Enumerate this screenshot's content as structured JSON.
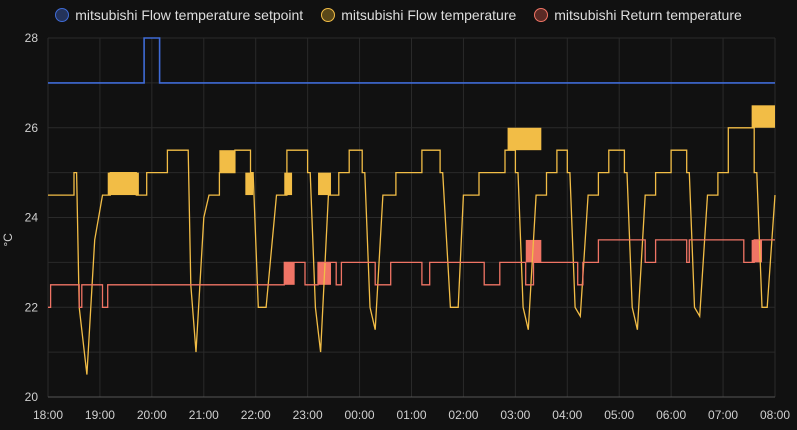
{
  "chart_data": {
    "type": "line",
    "ylabel": "°C",
    "ylim": [
      20,
      28
    ],
    "yticks": [
      20,
      22,
      24,
      26,
      28
    ],
    "xticks": [
      "18:00",
      "19:00",
      "20:00",
      "21:00",
      "22:00",
      "23:00",
      "00:00",
      "01:00",
      "02:00",
      "03:00",
      "04:00",
      "05:00",
      "06:00",
      "07:00",
      "08:00"
    ],
    "grid": true,
    "legend_position": "top",
    "series": [
      {
        "name": "mitsubishi Flow temperature setpoint",
        "color": "#3f6bd6",
        "step": true,
        "points": [
          [
            0,
            27
          ],
          [
            1.85,
            27
          ],
          [
            1.85,
            28
          ],
          [
            2.15,
            28
          ],
          [
            2.15,
            27
          ],
          [
            14,
            27
          ]
        ]
      },
      {
        "name": "mitsubishi Flow temperature",
        "color": "#f2bd46",
        "step": true,
        "points": [
          [
            0,
            24.5
          ],
          [
            0.5,
            24.5
          ],
          [
            0.5,
            25
          ],
          [
            0.55,
            25
          ],
          [
            0.6,
            22
          ],
          [
            0.75,
            20.5
          ],
          [
            0.9,
            23.5
          ],
          [
            1.05,
            24.5
          ],
          [
            1.2,
            24.5
          ],
          [
            1.2,
            25
          ],
          [
            1.7,
            25
          ],
          [
            1.7,
            24.5
          ],
          [
            1.9,
            24.5
          ],
          [
            1.9,
            25
          ],
          [
            2.1,
            25
          ],
          [
            2.1,
            25
          ],
          [
            2.3,
            25
          ],
          [
            2.3,
            25.5
          ],
          [
            2.7,
            25.5
          ],
          [
            2.75,
            22.5
          ],
          [
            2.85,
            21
          ],
          [
            3,
            24
          ],
          [
            3.1,
            24.5
          ],
          [
            3.3,
            24.5
          ],
          [
            3.3,
            25
          ],
          [
            3.6,
            25
          ],
          [
            3.6,
            25.5
          ],
          [
            3.9,
            25.5
          ],
          [
            3.9,
            25
          ],
          [
            3.95,
            25
          ],
          [
            4.05,
            22
          ],
          [
            4.2,
            22
          ],
          [
            4.4,
            24.5
          ],
          [
            4.6,
            24.5
          ],
          [
            4.6,
            25.5
          ],
          [
            5,
            25.5
          ],
          [
            5,
            25
          ],
          [
            5.05,
            25
          ],
          [
            5.15,
            22
          ],
          [
            5.25,
            21
          ],
          [
            5.4,
            24.5
          ],
          [
            5.6,
            24.5
          ],
          [
            5.6,
            25
          ],
          [
            5.8,
            25
          ],
          [
            5.8,
            25.5
          ],
          [
            6.05,
            25.5
          ],
          [
            6.05,
            25
          ],
          [
            6.1,
            25
          ],
          [
            6.2,
            22
          ],
          [
            6.3,
            21.5
          ],
          [
            6.45,
            24.5
          ],
          [
            6.7,
            24.5
          ],
          [
            6.7,
            25
          ],
          [
            7.2,
            25
          ],
          [
            7.2,
            25.5
          ],
          [
            7.55,
            25.5
          ],
          [
            7.55,
            25
          ],
          [
            7.6,
            25
          ],
          [
            7.75,
            22
          ],
          [
            7.9,
            22
          ],
          [
            8.0,
            24.5
          ],
          [
            8.3,
            24.5
          ],
          [
            8.3,
            25
          ],
          [
            8.8,
            25
          ],
          [
            8.8,
            25.5
          ],
          [
            9.0,
            25.5
          ],
          [
            9.0,
            25
          ],
          [
            9.05,
            25
          ],
          [
            9.15,
            22
          ],
          [
            9.25,
            21.5
          ],
          [
            9.4,
            24.5
          ],
          [
            9.6,
            24.5
          ],
          [
            9.6,
            25
          ],
          [
            9.8,
            25
          ],
          [
            9.8,
            25.5
          ],
          [
            10.0,
            25.5
          ],
          [
            10.0,
            25
          ],
          [
            10.05,
            25
          ],
          [
            10.15,
            22
          ],
          [
            10.25,
            21.8
          ],
          [
            10.4,
            24.5
          ],
          [
            10.6,
            24.5
          ],
          [
            10.6,
            25
          ],
          [
            10.8,
            25
          ],
          [
            10.8,
            25.5
          ],
          [
            11.1,
            25.5
          ],
          [
            11.1,
            25
          ],
          [
            11.15,
            25
          ],
          [
            11.25,
            22
          ],
          [
            11.35,
            21.5
          ],
          [
            11.5,
            24.5
          ],
          [
            11.7,
            24.5
          ],
          [
            11.7,
            25
          ],
          [
            12.0,
            25
          ],
          [
            12.0,
            25.5
          ],
          [
            12.3,
            25.5
          ],
          [
            12.3,
            25
          ],
          [
            12.35,
            25
          ],
          [
            12.45,
            22
          ],
          [
            12.55,
            21.8
          ],
          [
            12.7,
            24.5
          ],
          [
            12.9,
            24.5
          ],
          [
            12.9,
            25
          ],
          [
            13.1,
            25
          ],
          [
            13.1,
            26
          ],
          [
            13.6,
            26
          ],
          [
            13.6,
            25
          ],
          [
            13.65,
            25
          ],
          [
            13.75,
            22
          ],
          [
            13.85,
            22
          ],
          [
            14,
            24.5
          ]
        ]
      },
      {
        "name": "mitsubishi Return temperature",
        "color": "#f07465",
        "step": true,
        "points": [
          [
            0,
            22
          ],
          [
            0.05,
            22
          ],
          [
            0.05,
            22.5
          ],
          [
            0.6,
            22.5
          ],
          [
            0.6,
            22
          ],
          [
            0.65,
            22
          ],
          [
            0.65,
            22.5
          ],
          [
            1.05,
            22.5
          ],
          [
            1.05,
            22
          ],
          [
            1.15,
            22
          ],
          [
            1.15,
            22.5
          ],
          [
            4.55,
            22.5
          ],
          [
            4.55,
            23
          ],
          [
            4.95,
            23
          ],
          [
            4.95,
            22.5
          ],
          [
            5.2,
            22.5
          ],
          [
            5.2,
            23
          ],
          [
            5.55,
            23
          ],
          [
            5.55,
            22.5
          ],
          [
            5.65,
            22.5
          ],
          [
            5.65,
            23
          ],
          [
            6.3,
            23
          ],
          [
            6.3,
            22.5
          ],
          [
            6.6,
            22.5
          ],
          [
            6.6,
            23
          ],
          [
            7.2,
            23
          ],
          [
            7.2,
            22.5
          ],
          [
            7.35,
            22.5
          ],
          [
            7.35,
            23
          ],
          [
            8.4,
            23
          ],
          [
            8.4,
            22.5
          ],
          [
            8.7,
            22.5
          ],
          [
            8.7,
            23
          ],
          [
            9.2,
            23
          ],
          [
            9.2,
            22.5
          ],
          [
            9.35,
            22.5
          ],
          [
            9.35,
            23
          ],
          [
            10.2,
            23
          ],
          [
            10.2,
            22.5
          ],
          [
            10.3,
            22.5
          ],
          [
            10.3,
            23
          ],
          [
            10.6,
            23
          ],
          [
            10.6,
            23.5
          ],
          [
            11.5,
            23.5
          ],
          [
            11.5,
            23
          ],
          [
            11.7,
            23
          ],
          [
            11.7,
            23.5
          ],
          [
            12.3,
            23.5
          ],
          [
            12.3,
            23
          ],
          [
            12.35,
            23
          ],
          [
            12.35,
            23.5
          ],
          [
            13.4,
            23.5
          ],
          [
            13.4,
            23
          ],
          [
            13.6,
            23
          ],
          [
            13.6,
            23.5
          ],
          [
            14,
            23.5
          ]
        ]
      }
    ],
    "filled_bands": [
      {
        "series": 1,
        "x": [
          1.15,
          1.75
        ],
        "y": [
          24.5,
          25
        ]
      },
      {
        "series": 1,
        "x": [
          3.3,
          3.6
        ],
        "y": [
          25,
          25.5
        ]
      },
      {
        "series": 1,
        "x": [
          3.8,
          3.95
        ],
        "y": [
          24.5,
          25
        ]
      },
      {
        "series": 1,
        "x": [
          4.55,
          4.7
        ],
        "y": [
          24.5,
          25
        ]
      },
      {
        "series": 1,
        "x": [
          5.2,
          5.45
        ],
        "y": [
          24.5,
          25
        ]
      },
      {
        "series": 1,
        "x": [
          8.85,
          9.5
        ],
        "y": [
          25.5,
          26
        ]
      },
      {
        "series": 1,
        "x": [
          13.55,
          14
        ],
        "y": [
          26,
          26.5
        ]
      },
      {
        "series": 2,
        "x": [
          4.55,
          4.75
        ],
        "y": [
          22.5,
          23
        ]
      },
      {
        "series": 2,
        "x": [
          5.2,
          5.45
        ],
        "y": [
          22.5,
          23
        ]
      },
      {
        "series": 2,
        "x": [
          9.2,
          9.5
        ],
        "y": [
          23,
          23.5
        ]
      },
      {
        "series": 2,
        "x": [
          13.55,
          13.75
        ],
        "y": [
          23,
          23.5
        ]
      }
    ]
  }
}
